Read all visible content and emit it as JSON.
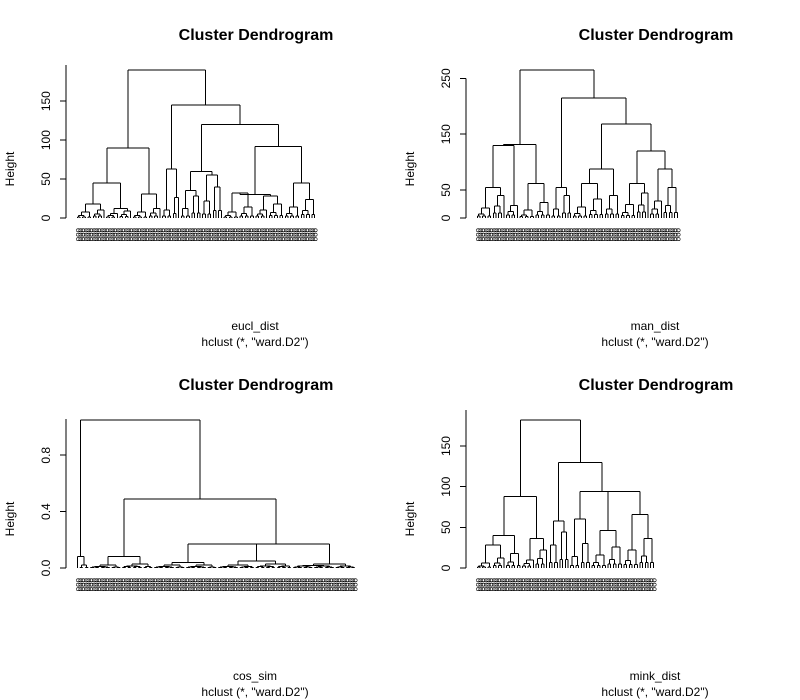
{
  "chart_data": [
    {
      "type": "dendrogram",
      "title": "Cluster Dendrogram",
      "xlabel": "eucl_dist",
      "sublabel": "hclust (*, \"ward.D2\")",
      "ylabel": "Height",
      "yticks": [
        0,
        50,
        100,
        150
      ],
      "ylim": [
        0,
        190
      ],
      "leaf_count": 105,
      "leaf_label_sample": "o",
      "clusters": [
        {
          "id": "a1",
          "h": 18,
          "children": [
            {
              "n": 6,
              "h": 8
            },
            {
              "n": 5,
              "h": 10
            }
          ]
        },
        {
          "id": "a2",
          "h": 12,
          "children": [
            {
              "n": 5,
              "h": 6
            },
            {
              "n": 5,
              "h": 9
            }
          ]
        },
        {
          "id": "a3",
          "h": 31,
          "children": [
            {
              "n": 6,
              "h": 8
            },
            {
              "n": 5,
              "h": 12
            }
          ]
        },
        {
          "id": "a4",
          "h": 45,
          "children": [
            "a1",
            "a2"
          ]
        },
        {
          "id": "a5",
          "h": 90,
          "children": [
            "a4",
            "a3"
          ]
        },
        {
          "id": "b1",
          "h": 63,
          "children": [
            {
              "n": 4,
              "h": 10
            },
            {
              "n": 3,
              "h": 26
            }
          ]
        },
        {
          "id": "b2",
          "h": 35,
          "children": [
            {
              "n": 4,
              "h": 12
            },
            {
              "n": 4,
              "h": 28
            }
          ]
        },
        {
          "id": "b3",
          "h": 55,
          "children": [
            {
              "n": 4,
              "h": 22
            },
            {
              "n": 4,
              "h": 40
            }
          ]
        },
        {
          "id": "b4",
          "h": 145,
          "children": [
            "b1",
            "b5"
          ]
        },
        {
          "id": "b5",
          "h": 120,
          "children": [
            "b6",
            "c4"
          ]
        },
        {
          "id": "b6",
          "h": 60,
          "children": [
            "b2",
            "b3"
          ]
        },
        {
          "id": "c1",
          "h": 32,
          "children": [
            {
              "n": 6,
              "h": 8
            },
            {
              "n": 6,
              "h": 14
            }
          ]
        },
        {
          "id": "c2",
          "h": 28,
          "children": [
            {
              "n": 5,
              "h": 10
            },
            {
              "n": 6,
              "h": 18
            }
          ]
        },
        {
          "id": "c3",
          "h": 45,
          "children": [
            {
              "n": 6,
              "h": 14
            },
            {
              "n": 6,
              "h": 24
            }
          ]
        },
        {
          "id": "c4",
          "h": 92,
          "children": [
            "c5",
            "c3"
          ]
        },
        {
          "id": "c5",
          "h": 30,
          "children": [
            "c1",
            "c2"
          ]
        },
        {
          "id": "root",
          "h": 190,
          "children": [
            "a5",
            "b4"
          ]
        }
      ],
      "root": "root"
    },
    {
      "type": "dendrogram",
      "title": "Cluster Dendrogram",
      "xlabel": "man_dist",
      "sublabel": "hclust (*, \"ward.D2\")",
      "ylabel": "Height",
      "yticks": [
        0,
        50,
        150,
        250
      ],
      "ylim": [
        0,
        265
      ],
      "leaf_count": 105,
      "leaf_label_sample": "o",
      "clusters": [
        {
          "id": "a1",
          "h": 55,
          "children": [
            {
              "n": 6,
              "h": 18
            },
            {
              "n": 5,
              "h": 40
            }
          ]
        },
        {
          "id": "a2",
          "h": 130,
          "children": [
            "a1",
            {
              "n": 5,
              "h": 22
            }
          ]
        },
        {
          "id": "a3",
          "h": 62,
          "children": [
            {
              "n": 6,
              "h": 14
            },
            {
              "n": 6,
              "h": 28
            }
          ]
        },
        {
          "id": "a4",
          "h": 132,
          "children": [
            "a2",
            "a3"
          ]
        },
        {
          "id": "b1",
          "h": 55,
          "children": [
            {
              "n": 4,
              "h": 16
            },
            {
              "n": 4,
              "h": 40
            }
          ]
        },
        {
          "id": "b2",
          "h": 62,
          "children": [
            {
              "n": 6,
              "h": 20
            },
            {
              "n": 6,
              "h": 34
            }
          ]
        },
        {
          "id": "b3",
          "h": 88,
          "children": [
            "b2",
            {
              "n": 6,
              "h": 40
            }
          ]
        },
        {
          "id": "b4",
          "h": 215,
          "children": [
            "b1",
            "b5"
          ]
        },
        {
          "id": "b5",
          "h": 168,
          "children": [
            "b3",
            "c3"
          ]
        },
        {
          "id": "c1",
          "h": 62,
          "children": [
            {
              "n": 6,
              "h": 24
            },
            {
              "n": 5,
              "h": 45
            }
          ]
        },
        {
          "id": "c2",
          "h": 88,
          "children": [
            {
              "n": 5,
              "h": 30
            },
            {
              "n": 6,
              "h": 55
            }
          ]
        },
        {
          "id": "c3",
          "h": 120,
          "children": [
            "c1",
            "c2"
          ]
        },
        {
          "id": "root",
          "h": 265,
          "children": [
            "a4",
            "b4"
          ]
        }
      ],
      "root": "root"
    },
    {
      "type": "dendrogram",
      "title": "Cluster Dendrogram",
      "xlabel": "cos_sim",
      "sublabel": "hclust (*, \"ward.D2\")",
      "ylabel": "Height",
      "yticks": [
        0.0,
        0.4,
        0.8
      ],
      "ylim": [
        0,
        1.05
      ],
      "leaf_count": 105,
      "leaf_label_sample": "o",
      "clusters": [
        {
          "id": "a1",
          "h": 0.08,
          "children": [
            {
              "n": 1,
              "h": 0.0
            },
            {
              "n": 4,
              "h": 0.02
            }
          ]
        },
        {
          "id": "b1",
          "h": 0.08,
          "children": [
            {
              "n": 12,
              "h": 0.02
            },
            {
              "n": 12,
              "h": 0.03
            }
          ]
        },
        {
          "id": "c1",
          "h": 0.04,
          "children": [
            {
              "n": 12,
              "h": 0.02
            },
            {
              "n": 12,
              "h": 0.02
            }
          ]
        },
        {
          "id": "c2",
          "h": 0.05,
          "children": [
            {
              "n": 14,
              "h": 0.02
            },
            {
              "n": 14,
              "h": 0.03
            }
          ]
        },
        {
          "id": "c3",
          "h": 0.17,
          "children": [
            "c1",
            "c2"
          ]
        },
        {
          "id": "c4",
          "h": 0.49,
          "children": [
            "b1",
            "c5"
          ]
        },
        {
          "id": "c5",
          "h": 0.17,
          "children": [
            "c3",
            {
              "n": 24,
              "h": 0.03
            }
          ]
        },
        {
          "id": "root",
          "h": 1.05,
          "children": [
            "a1",
            "c4"
          ]
        }
      ],
      "root": "root"
    },
    {
      "type": "dendrogram",
      "title": "Cluster Dendrogram",
      "xlabel": "mink_dist",
      "sublabel": "hclust (*, \"ward.D2\")",
      "ylabel": "Height",
      "yticks": [
        0,
        50,
        100,
        150
      ],
      "ylim": [
        0,
        182
      ],
      "leaf_count": 105,
      "leaf_label_sample": "o",
      "clusters": [
        {
          "id": "a1",
          "h": 28,
          "children": [
            {
              "n": 6,
              "h": 6
            },
            {
              "n": 5,
              "h": 12
            }
          ]
        },
        {
          "id": "a2",
          "h": 40,
          "children": [
            "a1",
            {
              "n": 6,
              "h": 18
            }
          ]
        },
        {
          "id": "a3",
          "h": 36,
          "children": [
            {
              "n": 5,
              "h": 10
            },
            {
              "n": 5,
              "h": 22
            }
          ]
        },
        {
          "id": "a4",
          "h": 88,
          "children": [
            "a2",
            "a3"
          ]
        },
        {
          "id": "b1",
          "h": 60,
          "children": [
            {
              "n": 4,
              "h": 14
            },
            {
              "n": 4,
              "h": 30
            }
          ]
        },
        {
          "id": "b2",
          "h": 58,
          "children": [
            {
              "n": 4,
              "h": 28
            },
            {
              "n": 4,
              "h": 44
            }
          ]
        },
        {
          "id": "b3",
          "h": 130,
          "children": [
            "b2",
            "c4"
          ]
        },
        {
          "id": "c1",
          "h": 46,
          "children": [
            {
              "n": 6,
              "h": 16
            },
            {
              "n": 6,
              "h": 26
            }
          ]
        },
        {
          "id": "c2",
          "h": 66,
          "children": [
            {
              "n": 6,
              "h": 22
            },
            {
              "n": 6,
              "h": 36
            }
          ]
        },
        {
          "id": "c3",
          "h": 94,
          "children": [
            "c1",
            "c2"
          ]
        },
        {
          "id": "c4",
          "h": 94,
          "children": [
            "b1",
            "c3"
          ]
        },
        {
          "id": "a5",
          "h": 182,
          "children": [
            "a4",
            "b3"
          ]
        }
      ],
      "root": "a5"
    }
  ]
}
